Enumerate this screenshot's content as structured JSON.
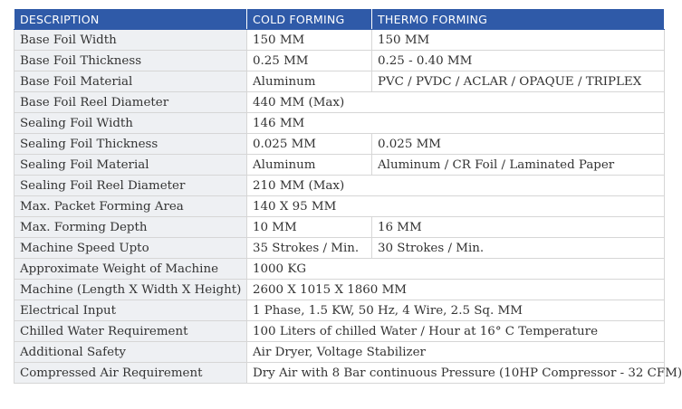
{
  "table": {
    "headers": [
      "DESCRIPTION",
      "COLD FORMING",
      "THERMO FORMING"
    ],
    "rows": [
      {
        "label": "Base Foil Width",
        "cold": "150 MM",
        "thermo": "150 MM"
      },
      {
        "label": "Base Foil Thickness",
        "cold": "0.25 MM",
        "thermo": "0.25 - 0.40 MM"
      },
      {
        "label": "Base Foil Material",
        "cold": "Aluminum",
        "thermo": "PVC / PVDC / ACLAR / OPAQUE / TRIPLEX"
      },
      {
        "label": "Base Foil Reel Diameter",
        "cold": "440 MM (Max)",
        "thermo": ""
      },
      {
        "label": "Sealing Foil Width",
        "cold": "146 MM",
        "thermo": ""
      },
      {
        "label": "Sealing Foil Thickness",
        "cold": "0.025 MM",
        "thermo": "0.025 MM"
      },
      {
        "label": "Sealing Foil Material",
        "cold": "Aluminum",
        "thermo": "Aluminum / CR Foil / Laminated Paper"
      },
      {
        "label": "Sealing Foil Reel Diameter",
        "cold": "210 MM (Max)",
        "thermo": ""
      },
      {
        "label": "Max. Packet Forming Area",
        "cold": "140 X 95 MM",
        "thermo": ""
      },
      {
        "label": "Max. Forming Depth",
        "cold": "10 MM",
        "thermo": "16 MM"
      },
      {
        "label": "Machine Speed Upto",
        "cold": "35 Strokes / Min.",
        "thermo": "30 Strokes / Min."
      },
      {
        "label": "Approximate Weight of Machine",
        "cold": "1000 KG",
        "thermo": ""
      },
      {
        "label": "Machine (Length X Width X Height)",
        "cold": "2600 X 1015 X 1860 MM",
        "thermo": ""
      },
      {
        "label": "Electrical Input",
        "cold": "1 Phase, 1.5 KW, 50 Hz, 4 Wire, 2.5 Sq. MM",
        "thermo": ""
      },
      {
        "label": "Chilled Water Requirement",
        "cold": "100 Liters of chilled Water / Hour at 16° C Temperature",
        "thermo": ""
      },
      {
        "label": "Additional Safety",
        "cold": "Air Dryer, Voltage Stabilizer",
        "thermo": ""
      },
      {
        "label": "Compressed Air Requirement",
        "cold": "Dry Air with 8 Bar continuous Pressure (10HP Compressor - 32 CFM)",
        "thermo": ""
      }
    ]
  },
  "colors": {
    "header_bg": "#2f5aa8",
    "label_bg": "#eef0f3",
    "border": "#d6d6d6"
  }
}
